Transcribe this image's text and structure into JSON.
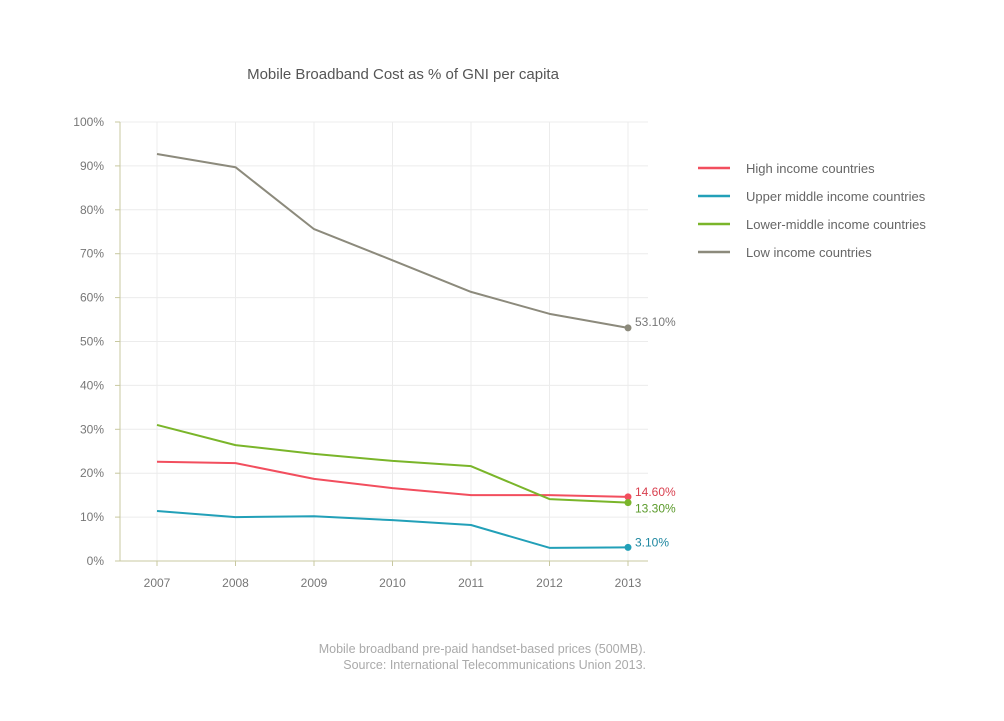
{
  "chart_data": {
    "type": "line",
    "title": "Mobile Broadband Cost as % of GNI per capita",
    "xlabel": "",
    "ylabel": "",
    "x": [
      "2007",
      "2008",
      "2009",
      "2010",
      "2011",
      "2012",
      "2013"
    ],
    "ylim": [
      0,
      100
    ],
    "yticks": [
      "0%",
      "10%",
      "20%",
      "30%",
      "40%",
      "50%",
      "60%",
      "70%",
      "80%",
      "90%",
      "100%"
    ],
    "grid": true,
    "legend_position": "right",
    "series": [
      {
        "name": "High income countries",
        "color": "#f24e5e",
        "label_color": "#d9404f",
        "values": [
          22.6,
          22.3,
          18.7,
          16.6,
          15.0,
          15.0,
          14.6
        ],
        "end_label": "14.60%"
      },
      {
        "name": "Upper middle income countries",
        "color": "#22a0b8",
        "label_color": "#1e87a0",
        "values": [
          11.4,
          10.0,
          10.2,
          9.3,
          8.2,
          3.0,
          3.1
        ],
        "end_label": "3.10%"
      },
      {
        "name": "Lower-middle income countries",
        "color": "#7ab52a",
        "label_color": "#5a9a2a",
        "values": [
          31.0,
          26.4,
          24.4,
          22.8,
          21.6,
          14.1,
          13.3
        ],
        "end_label": "13.30%"
      },
      {
        "name": "Low income countries",
        "color": "#8c8a7c",
        "label_color": "#777777",
        "values": [
          92.7,
          89.7,
          75.6,
          68.5,
          61.3,
          56.3,
          53.1
        ],
        "end_label": "53.10%"
      }
    ],
    "caption": [
      "Mobile broadband pre-paid handset-based prices (500MB).",
      "Source: International Telecommunications Union 2013."
    ]
  }
}
